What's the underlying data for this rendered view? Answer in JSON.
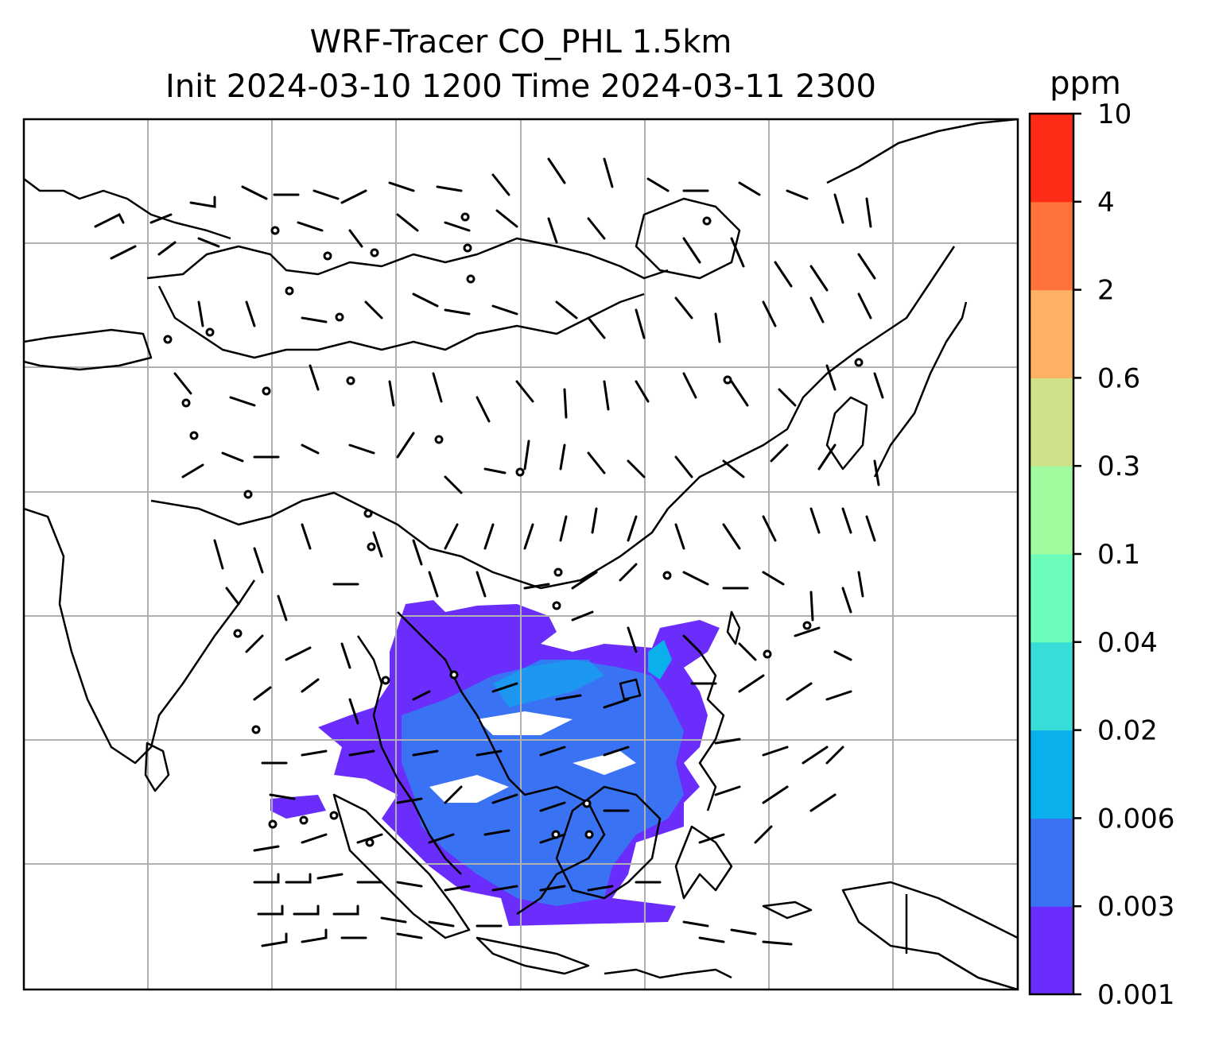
{
  "title": {
    "line1": "WRF-Tracer CO_PHL 1.5km",
    "line2": "Init 2024-03-10 1200 Time 2024-03-11 2300"
  },
  "colorbar": {
    "unit": "ppm",
    "levels": [
      "0.001",
      "0.003",
      "0.006",
      "0.02",
      "0.04",
      "0.1",
      "0.3",
      "0.6",
      "2",
      "4",
      "10"
    ],
    "colors": [
      "#6a2dfb",
      "#3a72f4",
      "#0ab0ec",
      "#38ddd7",
      "#6efcbd",
      "#a1fb9f",
      "#cfe28a",
      "#feb063",
      "#ff733a",
      "#fe2c16"
    ]
  },
  "map": {
    "plume_colors": {
      "outer": "#6a2dfb",
      "inner": "#3a72f4",
      "core": "#0ab0ec"
    },
    "gridlines": true,
    "coastline_color": "#000000",
    "grid_color": "#b0b0b0"
  }
}
